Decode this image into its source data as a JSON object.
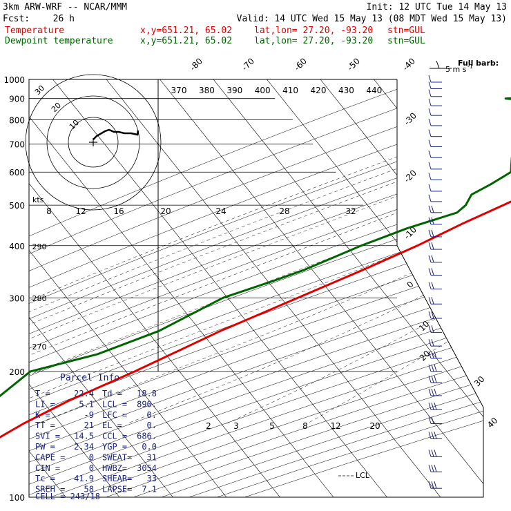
{
  "header": {
    "model": "3km ARW-WRF -- NCAR/MMM",
    "init": "Init: 12 UTC Tue 14 May 13",
    "fcst_label": "Fcst:",
    "fcst_value": "26 h",
    "valid": "Valid: 14 UTC Wed 15 May 13 (08 MDT Wed 15 May 13)",
    "legend": [
      {
        "name": "Temperature",
        "location": "x,y=651.21, 65.02",
        "latlon": "lat,lon= 27.20, -93.20",
        "station": "stn=GUL",
        "color": "#e00000"
      },
      {
        "name": "Dewpoint temperature",
        "location": "x,y=651.21, 65.02",
        "latlon": "lat,lon= 27.20, -93.20",
        "station": "stn=GUL",
        "color": "#006400"
      }
    ],
    "barb_key_line1": "Full barb:",
    "barb_key_line2": "5 m s",
    "barb_key_exp": "-1"
  },
  "chart_data": {
    "type": "line",
    "title": "",
    "ylabel": "",
    "y_scale": "log",
    "pressure_ticks": [
      100,
      200,
      300,
      400,
      500,
      600,
      700,
      800,
      900,
      1000
    ],
    "isotherm_labels": [
      {
        "value": "-80",
        "side": "top"
      },
      {
        "value": "-70",
        "side": "top"
      },
      {
        "value": "-60",
        "side": "top"
      },
      {
        "value": "-50",
        "side": "top"
      },
      {
        "value": "-40",
        "side": "top"
      },
      {
        "value": "-30",
        "side": "right"
      },
      {
        "value": "-20",
        "side": "right"
      },
      {
        "value": "-10",
        "side": "right"
      },
      {
        "value": "0",
        "side": "right"
      },
      {
        "value": "10",
        "side": "right"
      },
      {
        "value": "20",
        "side": "right"
      },
      {
        "value": "30",
        "side": "right"
      },
      {
        "value": "40",
        "side": "right"
      }
    ],
    "theta_labels": [
      "370",
      "380",
      "390",
      "400",
      "410",
      "420",
      "430",
      "440"
    ],
    "theta_low_labels": [
      "290",
      "280",
      "270"
    ],
    "mixing_ratio_labels": [
      "2",
      "3",
      "5",
      "8",
      "12",
      "20"
    ],
    "lcl_label": "LCL",
    "series": [
      {
        "name": "Temperature",
        "color": "#e00000",
        "points": [
          [
            1000,
            23.8
          ],
          [
            970,
            21.2
          ],
          [
            940,
            20.9
          ],
          [
            925,
            22.2
          ],
          [
            900,
            21.0
          ],
          [
            850,
            17.2
          ],
          [
            800,
            14.0
          ],
          [
            750,
            11.0
          ],
          [
            700,
            8.8
          ],
          [
            650,
            4.0
          ],
          [
            600,
            0.0
          ],
          [
            550,
            -5.0
          ],
          [
            500,
            -9.5
          ],
          [
            450,
            -14.5
          ],
          [
            400,
            -19.5
          ],
          [
            350,
            -26.0
          ],
          [
            300,
            -34.0
          ],
          [
            250,
            -43.5
          ],
          [
            200,
            -53.5
          ],
          [
            170,
            -61.5
          ],
          [
            150,
            -66.5
          ],
          [
            130,
            -71.0
          ],
          [
            115,
            -72.5
          ],
          [
            100,
            -73.0
          ]
        ]
      },
      {
        "name": "Dewpoint temperature",
        "color": "#006400",
        "points": [
          [
            1000,
            20.0
          ],
          [
            975,
            19.0
          ],
          [
            960,
            17.0
          ],
          [
            900,
            -25.0
          ],
          [
            890,
            -20.0
          ],
          [
            800,
            8.0
          ],
          [
            750,
            -4.0
          ],
          [
            700,
            -10.0
          ],
          [
            650,
            -15.0
          ],
          [
            600,
            -13.0
          ],
          [
            560,
            -15.0
          ],
          [
            530,
            -17.0
          ],
          [
            500,
            -16.5
          ],
          [
            480,
            -17.0
          ],
          [
            440,
            -24.0
          ],
          [
            400,
            -30.0
          ],
          [
            350,
            -37.0
          ],
          [
            330,
            -41.0
          ],
          [
            300,
            -48.0
          ],
          [
            250,
            -55.0
          ],
          [
            220,
            -63.0
          ],
          [
            200,
            -73.0
          ],
          [
            175,
            -75.0
          ],
          [
            150,
            -78.0
          ],
          [
            130,
            -80.0
          ],
          [
            115,
            -81.0
          ],
          [
            100,
            -82.0
          ]
        ]
      }
    ],
    "wind_barbs": [
      {
        "pressure": 105,
        "barbs": 3
      },
      {
        "pressure": 115,
        "barbs": 3
      },
      {
        "pressure": 125,
        "barbs": 3
      },
      {
        "pressure": 138,
        "barbs": 3
      },
      {
        "pressure": 150,
        "barbs": 2
      },
      {
        "pressure": 162,
        "barbs": 3
      },
      {
        "pressure": 175,
        "barbs": 3
      },
      {
        "pressure": 188,
        "barbs": 3
      },
      {
        "pressure": 200,
        "barbs": 3
      },
      {
        "pressure": 215,
        "barbs": 3
      },
      {
        "pressure": 230,
        "barbs": 2
      },
      {
        "pressure": 248,
        "barbs": 2
      },
      {
        "pressure": 268,
        "barbs": 2
      },
      {
        "pressure": 290,
        "barbs": 2
      },
      {
        "pressure": 315,
        "barbs": 2
      },
      {
        "pressure": 340,
        "barbs": 2
      },
      {
        "pressure": 365,
        "barbs": 2
      },
      {
        "pressure": 392,
        "barbs": 2
      },
      {
        "pressure": 420,
        "barbs": 2
      },
      {
        "pressure": 450,
        "barbs": 2
      },
      {
        "pressure": 480,
        "barbs": 2
      },
      {
        "pressure": 510,
        "barbs": 1
      },
      {
        "pressure": 540,
        "barbs": 1
      },
      {
        "pressure": 575,
        "barbs": 1
      },
      {
        "pressure": 610,
        "barbs": 1
      },
      {
        "pressure": 650,
        "barbs": 1
      },
      {
        "pressure": 690,
        "barbs": 1
      },
      {
        "pressure": 730,
        "barbs": 1
      },
      {
        "pressure": 775,
        "barbs": 1
      },
      {
        "pressure": 820,
        "barbs": 1
      },
      {
        "pressure": 865,
        "barbs": 1
      },
      {
        "pressure": 910,
        "barbs": 1
      },
      {
        "pressure": 950,
        "barbs": 1
      },
      {
        "pressure": 985,
        "barbs": 1
      }
    ]
  },
  "hodograph": {
    "units": "kts",
    "ring_labels": [
      "10",
      "20",
      "30"
    ],
    "speed_scale_labels": [
      "8",
      "12",
      "16",
      "20",
      "24",
      "28",
      "32"
    ]
  },
  "parcel_info": {
    "title": "Parcel Info",
    "rows": [
      {
        "k1": "T   =",
        "v1": "22.4",
        "k2": "Td =",
        "v2": "18.8"
      },
      {
        "k1": "LI  =",
        "v1": "5.1",
        "k2": "LCL =",
        "v2": "890."
      },
      {
        "k1": "K   =",
        "v1": "-9",
        "k2": "LFC =",
        "v2": "0."
      },
      {
        "k1": "TT  =",
        "v1": "21",
        "k2": "EL  =",
        "v2": "0."
      },
      {
        "k1": "SVI =",
        "v1": "14.5",
        "k2": "CCL =",
        "v2": "686."
      },
      {
        "k1": "PW  =",
        "v1": "2.34",
        "k2": "YGP =",
        "v2": "0.0"
      },
      {
        "k1": "CAPE =",
        "v1": "0",
        "k2": "SWEAT=",
        "v2": "31"
      },
      {
        "k1": "CIN  =",
        "v1": "0",
        "k2": "HWBZ=",
        "v2": "3054"
      },
      {
        "k1": "Tc   =",
        "v1": "41.9",
        "k2": "SHEAR=",
        "v2": "33"
      },
      {
        "k1": "SREH =",
        "v1": "58",
        "k2": "LAPSE=",
        "v2": "7.1"
      }
    ],
    "cell": "CELL = 243/18"
  }
}
